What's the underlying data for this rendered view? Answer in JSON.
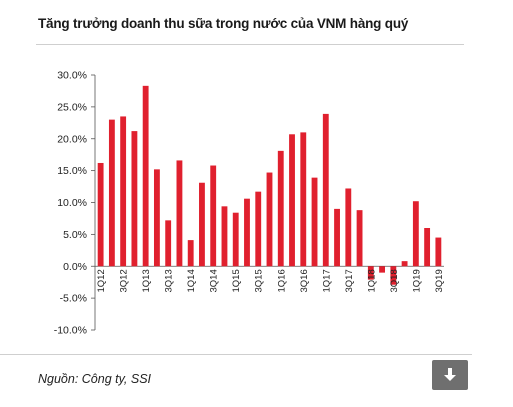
{
  "source": "Nguồn: Công ty, SSI",
  "download_icon": "download-arrow-icon",
  "chart_data": {
    "type": "bar",
    "title": "Tăng trưởng doanh thu sữa trong nước của VNM hàng quý",
    "xlabel": "",
    "ylabel": "",
    "ylim": [
      -10,
      30
    ],
    "yticks": [
      "30.0%",
      "25.0%",
      "20.0%",
      "15.0%",
      "10.0%",
      "5.0%",
      "0.0%",
      "-5.0%",
      "-10.0%"
    ],
    "ytick_values": [
      30,
      25,
      20,
      15,
      10,
      5,
      0,
      -5,
      -10
    ],
    "bar_color": "#e0202e",
    "grid": false,
    "categories": [
      "1Q12",
      "2Q12",
      "3Q12",
      "4Q12",
      "1Q13",
      "2Q13",
      "3Q13",
      "4Q13",
      "1Q14",
      "2Q14",
      "3Q14",
      "4Q14",
      "1Q15",
      "2Q15",
      "3Q15",
      "4Q15",
      "1Q16",
      "2Q16",
      "3Q16",
      "4Q16",
      "1Q17",
      "2Q17",
      "3Q17",
      "4Q17",
      "1Q18",
      "2Q18",
      "3Q18",
      "4Q18",
      "1Q19",
      "2Q19",
      "3Q19"
    ],
    "tick_labels": [
      "1Q12",
      "",
      "3Q12",
      "",
      "1Q13",
      "",
      "3Q13",
      "",
      "1Q14",
      "",
      "3Q14",
      "",
      "1Q15",
      "",
      "3Q15",
      "",
      "1Q16",
      "",
      "3Q16",
      "",
      "1Q17",
      "",
      "3Q17",
      "",
      "1Q18",
      "",
      "3Q18",
      "",
      "1Q19",
      "",
      "3Q19"
    ],
    "values": [
      16.2,
      23.0,
      23.5,
      21.2,
      28.3,
      15.2,
      7.2,
      16.6,
      4.1,
      13.1,
      15.8,
      9.4,
      8.4,
      10.6,
      11.7,
      14.7,
      18.1,
      20.7,
      21.0,
      13.9,
      23.9,
      9.0,
      12.2,
      8.8,
      -2.1,
      -1.0,
      -2.9,
      0.8,
      10.2,
      6.0,
      4.5
    ]
  }
}
